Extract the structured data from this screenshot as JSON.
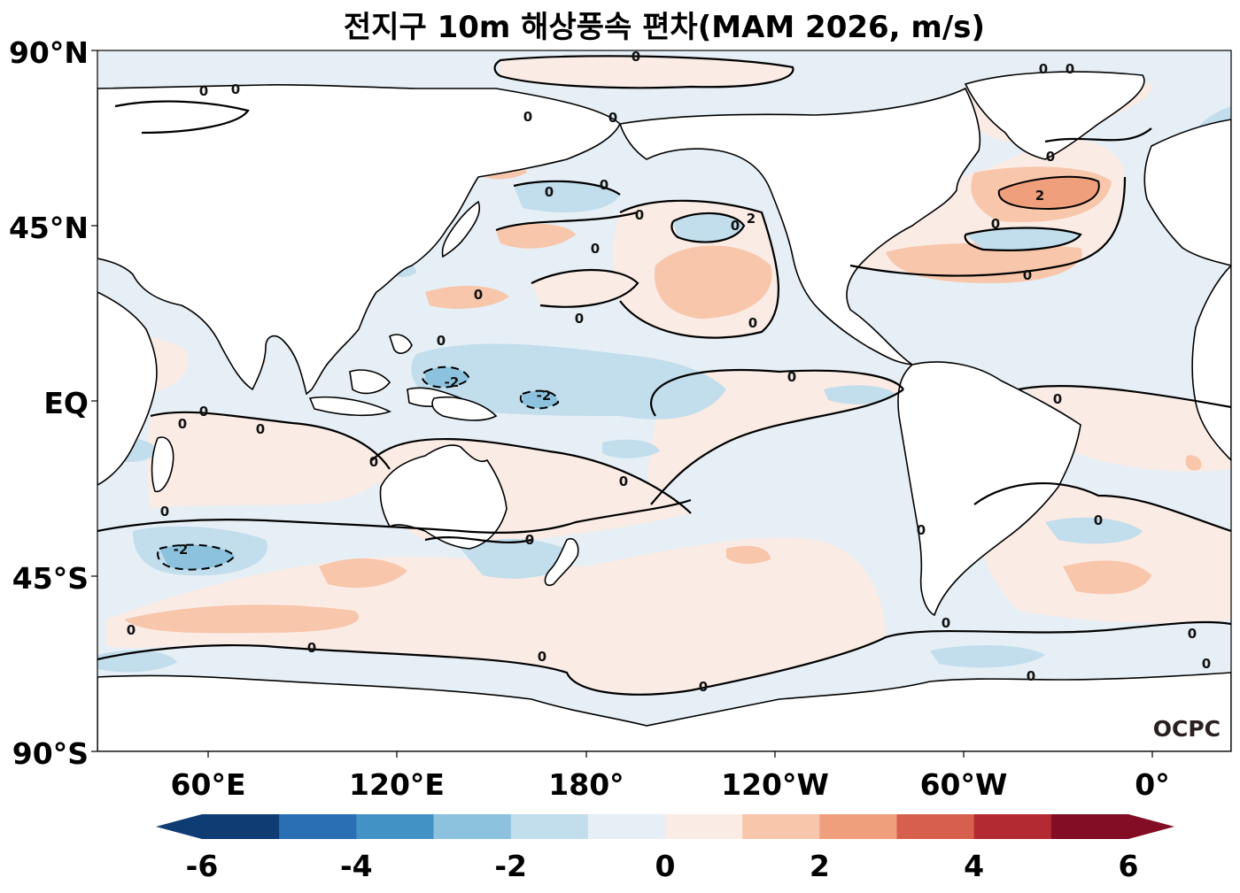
{
  "title": "전지구 10m 해상풍속 편차(MAM 2026, m/s)",
  "logo": "OCPC",
  "map": {
    "projection": "PlateCarree",
    "central_longitude": 180,
    "lat_range": [
      -90,
      90
    ],
    "lon_tick_labels": [
      "60°E",
      "120°E",
      "180°",
      "120°W",
      "60°W",
      "0°"
    ],
    "lat_tick_labels": [
      "90°N",
      "45°N",
      "EQ",
      "45°S",
      "90°S"
    ],
    "contour_labels": {
      "zero": "0",
      "neg2": "-2",
      "pos2": "2"
    },
    "background_color": "#e6eff5"
  },
  "colorbar": {
    "levels": [
      -6,
      -5,
      -4,
      -3,
      -2,
      -1,
      0,
      1,
      2,
      3,
      4,
      5,
      6
    ],
    "tick_labels": [
      "-6",
      "-4",
      "-2",
      "0",
      "2",
      "4",
      "6"
    ],
    "colors": [
      "#0e3c73",
      "#2a6fb3",
      "#4392c6",
      "#8cc2de",
      "#c2ddec",
      "#e6eff5",
      "#faebe4",
      "#f7c6ab",
      "#f09f7d",
      "#d6604d",
      "#b42a33",
      "#820d24"
    ],
    "extend": "both"
  },
  "chart_data": {
    "type": "heatmap",
    "variable": "10m sea surface wind speed anomaly",
    "units": "m/s",
    "period": "MAM 2026",
    "features": [
      {
        "region": "North Atlantic ~50°N, 40°W",
        "value": 2
      },
      {
        "region": "Western Pacific ~10°N, 140°E",
        "value": -2
      },
      {
        "region": "Central Pacific ~5°N, 165°W",
        "value": -2
      },
      {
        "region": "South Indian Ocean ~45°S, 60°E",
        "value": -2
      },
      {
        "region": "Southern Ocean 50–60°S",
        "value": 1
      },
      {
        "region": "Subtropical North Pacific ~35°N, 135°W",
        "value": 1
      },
      {
        "region": "Equatorial East Pacific",
        "value": -0.5
      }
    ]
  }
}
